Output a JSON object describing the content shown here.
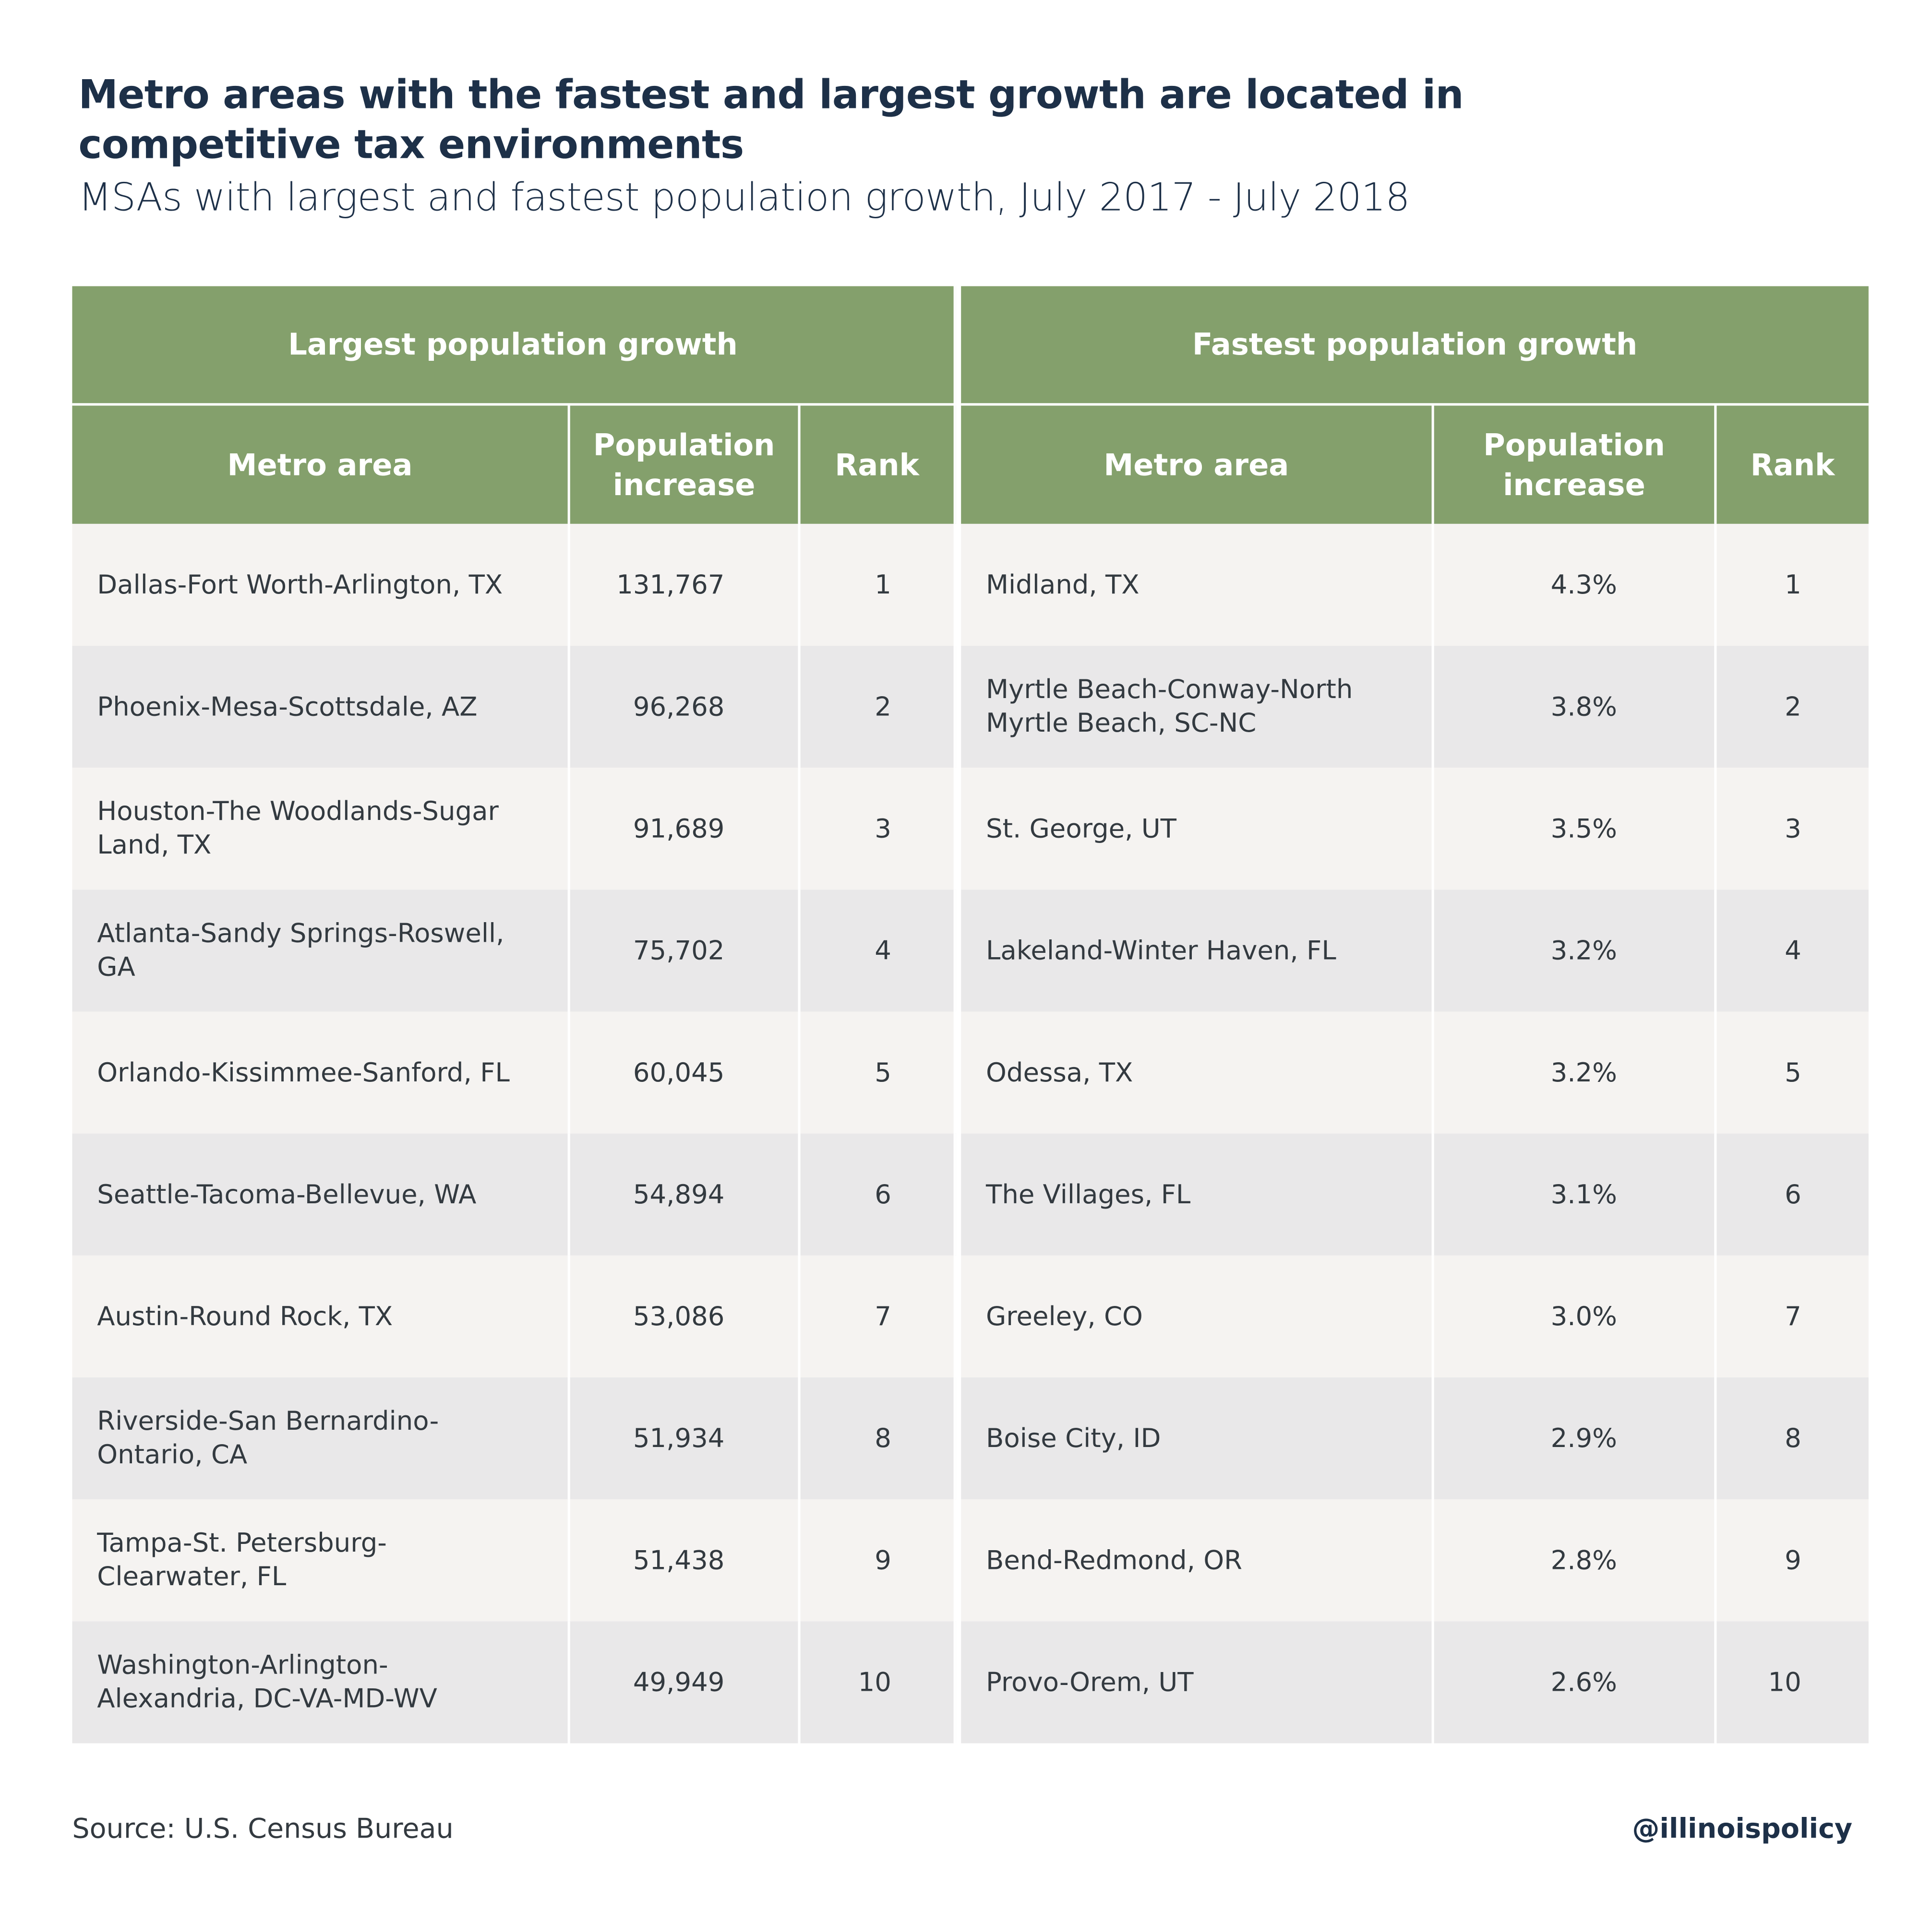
{
  "header": {
    "title": "Metro areas with the fastest and largest growth are located in competitive tax environments",
    "subtitle": "MSAs with largest and fastest population growth, July 2017 - July 2018"
  },
  "table": {
    "groups": [
      "Largest population growth",
      "Fastest population growth"
    ],
    "columns": [
      "Metro area",
      "Population increase",
      "Rank",
      "Metro area",
      "Population increase",
      "Rank"
    ],
    "rows": [
      [
        "Dallas-Fort Worth-Arlington, TX",
        "131,767",
        "1",
        "Midland, TX",
        "4.3%",
        "1"
      ],
      [
        "Phoenix-Mesa-Scottsdale, AZ",
        "96,268",
        "2",
        "Myrtle Beach-Conway-North Myrtle Beach, SC-NC",
        "3.8%",
        "2"
      ],
      [
        "Houston-The Woodlands-Sugar Land, TX",
        "91,689",
        "3",
        "St. George, UT",
        "3.5%",
        "3"
      ],
      [
        "Atlanta-Sandy Springs-Roswell, GA",
        "75,702",
        "4",
        "Lakeland-Winter Haven, FL",
        "3.2%",
        "4"
      ],
      [
        "Orlando-Kissimmee-Sanford, FL",
        "60,045",
        "5",
        "Odessa, TX",
        "3.2%",
        "5"
      ],
      [
        "Seattle-Tacoma-Bellevue, WA",
        "54,894",
        "6",
        "The Villages, FL",
        "3.1%",
        "6"
      ],
      [
        "Austin-Round Rock, TX",
        "53,086",
        "7",
        "Greeley, CO",
        "3.0%",
        "7"
      ],
      [
        "Riverside-San Bernardino-Ontario, CA",
        "51,934",
        "8",
        "Boise City, ID",
        "2.9%",
        "8"
      ],
      [
        "Tampa-St. Petersburg-Clearwater, FL",
        "51,438",
        "9",
        "Bend-Redmond, OR",
        "2.8%",
        "9"
      ],
      [
        "Washington-Arlington-Alexandria, DC-VA-MD-WV",
        "49,949",
        "10",
        "Provo-Orem, UT",
        "2.6%",
        "10"
      ]
    ]
  },
  "footer": {
    "source": "Source: U.S. Census Bureau",
    "credit": "@illinoispolicy"
  }
}
